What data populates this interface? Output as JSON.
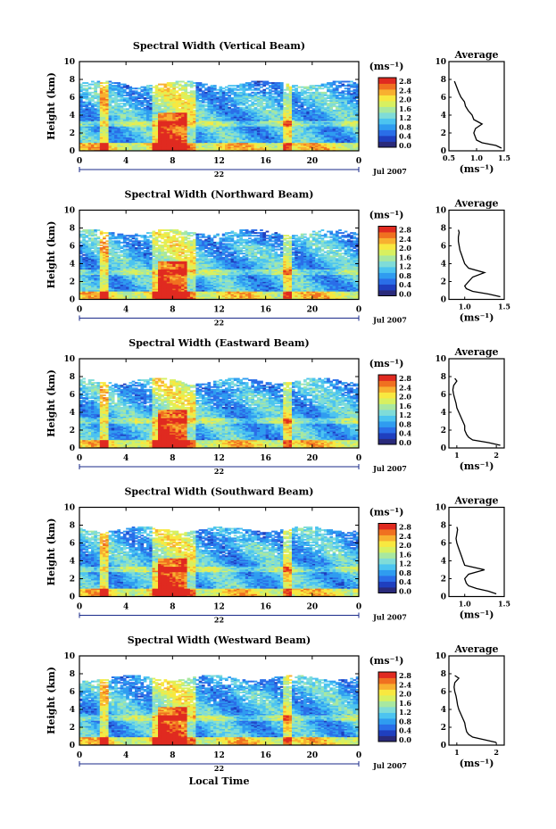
{
  "figure": {
    "xlabel": "Local Time"
  },
  "colorbar": {
    "unit": "(ms⁻¹)",
    "ticks": [
      "2.8",
      "2.4",
      "2.0",
      "1.6",
      "1.2",
      "0.8",
      "0.4",
      "0.0"
    ],
    "colors": [
      "#2a2a7a",
      "#1f3fbf",
      "#2a6ee8",
      "#2f9cf0",
      "#4cc4f0",
      "#7fdcd8",
      "#a8e8a0",
      "#d8f060",
      "#f8e840",
      "#f8b030",
      "#f07020",
      "#e02a20"
    ]
  },
  "chart_data": [
    {
      "type": "heatmap",
      "title": "Spectral Width (Vertical Beam)",
      "ylabel": "Height (km)",
      "xlim": [
        0,
        24
      ],
      "ylim": [
        0,
        10
      ],
      "xticks": [
        "0",
        "4",
        "8",
        "12",
        "16",
        "20",
        "0"
      ],
      "yticks": [
        "10",
        "8",
        "6",
        "4",
        "2",
        "0"
      ],
      "date_labels": {
        "day1": "22",
        "month_year": "Jul 2007"
      },
      "average": {
        "title": "Average",
        "xlabel": "(ms⁻¹)",
        "xlim": [
          0.5,
          1.5
        ],
        "xticks": [
          "0.5",
          "1.0",
          "1.5"
        ],
        "yticks": [
          "10",
          "8",
          "6",
          "4",
          "2",
          "0"
        ],
        "profile": {
          "height": [
            0.3,
            0.6,
            0.9,
            1.2,
            1.5,
            2.0,
            2.5,
            3.0,
            3.5,
            4.0,
            4.5,
            5.0,
            5.5,
            6.0,
            6.5,
            7.0,
            7.5,
            7.8
          ],
          "value": [
            1.45,
            1.35,
            1.1,
            1.0,
            0.98,
            0.95,
            0.98,
            1.1,
            0.95,
            0.92,
            0.85,
            0.8,
            0.78,
            0.72,
            0.68,
            0.65,
            0.62,
            0.6
          ]
        }
      }
    },
    {
      "type": "heatmap",
      "title": "Spectral Width (Northward Beam)",
      "ylabel": "Height (km)",
      "xlim": [
        0,
        24
      ],
      "ylim": [
        0,
        10
      ],
      "xticks": [
        "0",
        "4",
        "8",
        "12",
        "16",
        "20",
        "0"
      ],
      "yticks": [
        "10",
        "8",
        "6",
        "4",
        "2",
        "0"
      ],
      "date_labels": {
        "day1": "22",
        "month_year": "Jul 2007"
      },
      "average": {
        "title": "Average",
        "xlabel": "(ms⁻¹)",
        "xlim": [
          0.8,
          1.5
        ],
        "xticks": [
          "1.0",
          "1.5"
        ],
        "yticks": [
          "10",
          "8",
          "6",
          "4",
          "2",
          "0"
        ],
        "profile": {
          "height": [
            0.3,
            0.6,
            0.9,
            1.2,
            1.5,
            2.0,
            2.5,
            3.0,
            3.5,
            4.0,
            4.5,
            5.0,
            5.5,
            6.0,
            6.5,
            7.0,
            7.5,
            7.8
          ],
          "value": [
            1.45,
            1.3,
            1.1,
            1.02,
            1.0,
            1.05,
            1.1,
            1.25,
            1.05,
            1.0,
            0.98,
            0.96,
            0.94,
            0.93,
            0.92,
            0.92,
            0.93,
            0.92
          ]
        }
      }
    },
    {
      "type": "heatmap",
      "title": "Spectral Width (Eastward Beam)",
      "ylabel": "Height (km)",
      "xlim": [
        0,
        24
      ],
      "ylim": [
        0,
        10
      ],
      "xticks": [
        "0",
        "4",
        "8",
        "12",
        "16",
        "20",
        "0"
      ],
      "yticks": [
        "10",
        "8",
        "6",
        "4",
        "2",
        "0"
      ],
      "date_labels": {
        "day1": "22",
        "month_year": "Jul 2007"
      },
      "average": {
        "title": "Average",
        "xlabel": "(ms⁻¹)",
        "xlim": [
          0.8,
          2.2
        ],
        "xticks": [
          "1",
          "2"
        ],
        "yticks": [
          "10",
          "8",
          "6",
          "4",
          "2",
          "0"
        ],
        "profile": {
          "height": [
            0.3,
            0.6,
            0.9,
            1.2,
            1.5,
            2.0,
            2.5,
            3.0,
            3.5,
            4.0,
            4.5,
            5.0,
            5.5,
            6.0,
            6.5,
            7.0,
            7.5,
            7.8
          ],
          "value": [
            2.1,
            1.8,
            1.4,
            1.3,
            1.25,
            1.2,
            1.2,
            1.15,
            1.1,
            1.05,
            1.0,
            0.98,
            0.95,
            0.92,
            0.9,
            0.92,
            1.0,
            0.95
          ]
        }
      }
    },
    {
      "type": "heatmap",
      "title": "Spectral Width (Southward Beam)",
      "ylabel": "Height (km)",
      "xlim": [
        0,
        24
      ],
      "ylim": [
        0,
        10
      ],
      "xticks": [
        "0",
        "4",
        "8",
        "12",
        "16",
        "20",
        "0"
      ],
      "yticks": [
        "10",
        "8",
        "6",
        "4",
        "2",
        "0"
      ],
      "date_labels": {
        "day1": "22",
        "month_year": "Jul 2007"
      },
      "average": {
        "title": "Average",
        "xlabel": "(ms⁻¹)",
        "xlim": [
          0.8,
          1.5
        ],
        "xticks": [
          "1.0",
          "1.5"
        ],
        "yticks": [
          "10",
          "8",
          "6",
          "4",
          "2",
          "0"
        ],
        "profile": {
          "height": [
            0.3,
            0.6,
            0.9,
            1.2,
            1.5,
            2.0,
            2.5,
            3.0,
            3.5,
            4.0,
            4.5,
            5.0,
            5.5,
            6.0,
            6.5,
            7.0,
            7.5,
            7.8
          ],
          "value": [
            1.4,
            1.3,
            1.15,
            1.05,
            1.02,
            1.0,
            1.05,
            1.25,
            1.0,
            0.98,
            0.96,
            0.94,
            0.92,
            0.9,
            0.89,
            0.9,
            0.91,
            0.9
          ]
        }
      }
    },
    {
      "type": "heatmap",
      "title": "Spectral Width (Westward Beam)",
      "ylabel": "Height (km)",
      "xlim": [
        0,
        24
      ],
      "ylim": [
        0,
        10
      ],
      "xticks": [
        "0",
        "4",
        "8",
        "12",
        "16",
        "20",
        "0"
      ],
      "yticks": [
        "10",
        "8",
        "6",
        "4",
        "2",
        "0"
      ],
      "date_labels": {
        "day1": "22",
        "month_year": "Jul 2007"
      },
      "average": {
        "title": "Average",
        "xlabel": "(ms⁻¹)",
        "xlim": [
          0.8,
          2.2
        ],
        "xticks": [
          "1",
          "2"
        ],
        "yticks": [
          "10",
          "8",
          "6",
          "4",
          "2",
          "0"
        ],
        "profile": {
          "height": [
            0.3,
            0.6,
            0.9,
            1.2,
            1.5,
            2.0,
            2.5,
            3.0,
            3.5,
            4.0,
            4.5,
            5.0,
            5.5,
            6.0,
            6.5,
            7.0,
            7.5,
            7.8
          ],
          "value": [
            2.0,
            1.7,
            1.4,
            1.3,
            1.25,
            1.22,
            1.2,
            1.15,
            1.1,
            1.05,
            1.02,
            1.0,
            0.98,
            0.95,
            0.93,
            0.95,
            1.05,
            0.95
          ]
        }
      }
    }
  ]
}
